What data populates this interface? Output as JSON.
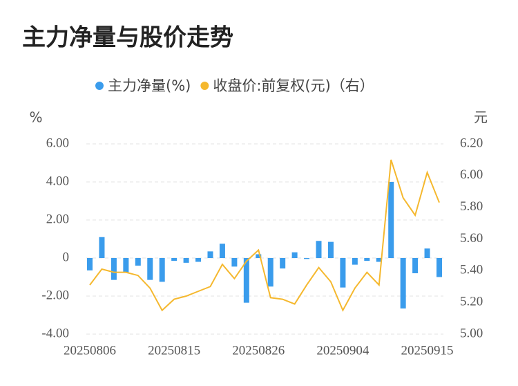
{
  "chart_data": {
    "type": "bar_line",
    "title": "主力净量与股价走势",
    "y_label": "%",
    "y2_label": "元",
    "categories": [
      "20250806",
      null,
      null,
      null,
      null,
      null,
      null,
      "20250815",
      null,
      null,
      null,
      null,
      null,
      null,
      "20250826",
      null,
      null,
      null,
      null,
      null,
      null,
      "20250904",
      null,
      null,
      null,
      null,
      null,
      null,
      "20250915",
      null
    ],
    "series": [
      {
        "name": "主力净量(%)",
        "color": "#3a9cec",
        "type": "bar",
        "values": [
          -0.65,
          1.1,
          -1.15,
          -0.75,
          -0.4,
          -1.15,
          -1.25,
          -0.15,
          -0.25,
          -0.2,
          0.35,
          0.75,
          -0.45,
          -2.35,
          0.2,
          -1.5,
          -0.55,
          0.3,
          -0.05,
          0.9,
          0.85,
          -1.55,
          -0.35,
          -0.15,
          -0.2,
          4.0,
          -2.65,
          -0.8,
          0.5,
          -1.0
        ]
      },
      {
        "name": "收盘价:前复权(元)（右）",
        "color": "#f5b82e",
        "type": "line",
        "axis": "y2",
        "values": [
          5.31,
          5.41,
          5.39,
          5.39,
          5.37,
          5.29,
          5.15,
          5.22,
          5.24,
          5.27,
          5.3,
          5.44,
          5.35,
          5.46,
          5.53,
          5.23,
          5.22,
          5.19,
          5.31,
          5.42,
          5.33,
          5.15,
          5.29,
          5.39,
          5.31,
          6.1,
          5.86,
          5.75,
          6.02,
          5.83
        ]
      }
    ],
    "ylim": [
      -4,
      6
    ],
    "yticks": [
      {
        "value": -4,
        "label": "-4.00"
      },
      {
        "value": -2,
        "label": "-2.00"
      },
      0,
      {
        "value": 2,
        "label": "2.00"
      },
      {
        "value": 4,
        "label": "4.00"
      },
      {
        "value": 6,
        "label": "6.00"
      }
    ],
    "y2lim": [
      5.0,
      6.2
    ],
    "y2ticks": [
      {
        "value": 5.0,
        "label": "5.00"
      },
      {
        "value": 5.2,
        "label": "5.20"
      },
      {
        "value": 5.4,
        "label": "5.40"
      },
      {
        "value": 5.6,
        "label": "5.60"
      },
      {
        "value": 5.8,
        "label": "5.80"
      },
      {
        "value": 6.0,
        "label": "6.00"
      },
      {
        "value": 6.2,
        "label": "6.20"
      }
    ],
    "grid": true
  }
}
